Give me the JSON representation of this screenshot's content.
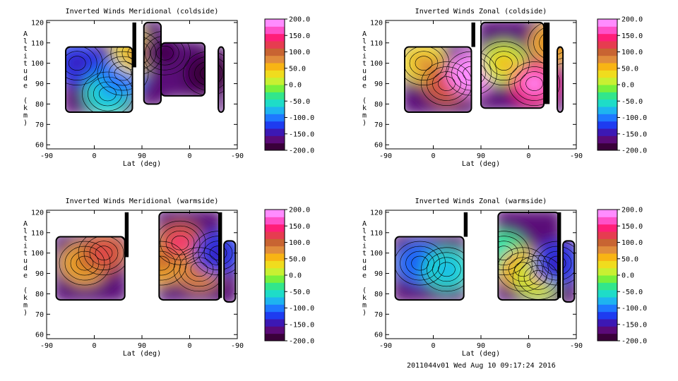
{
  "footer": "2011044v01 Wed Aug 10 09:17:24 2016",
  "colorbar": {
    "labels": [
      "200.0",
      "150.0",
      "100.0",
      "50.0",
      "0.0",
      "-50.0",
      "-100.0",
      "-150.0",
      "-200.0"
    ],
    "values": [
      200,
      150,
      100,
      50,
      0,
      -50,
      -100,
      -150,
      -200
    ],
    "colors": [
      "#3a003a",
      "#5a0a78",
      "#3c18b4",
      "#1e3cf0",
      "#1e78ff",
      "#1eb4f0",
      "#1edcc8",
      "#32e68c",
      "#78f03c",
      "#c8f032",
      "#f0dc1e",
      "#f8b414",
      "#e08c3c",
      "#c86432",
      "#e63c50",
      "#ff1e78",
      "#ff50c8",
      "#ff8cff"
    ]
  },
  "chart_data": [
    {
      "type": "heatmap",
      "title": "Inverted Winds Meridional (coldside)",
      "xlabel": "Lat (deg)",
      "ylabel": "Altitude (km)",
      "xticklabels": [
        "-90",
        "0",
        "90",
        "0",
        "-90"
      ],
      "yticks": [
        60,
        70,
        80,
        90,
        100,
        110,
        120
      ],
      "ylim": [
        58,
        121
      ],
      "zlim": [
        -200,
        200
      ],
      "blobs": [
        {
          "x": 0.16,
          "y": 100,
          "value": -120
        },
        {
          "x": 0.32,
          "y": 85,
          "value": -60
        },
        {
          "x": 0.4,
          "y": 95,
          "value": -90
        },
        {
          "x": 0.47,
          "y": 105,
          "value": 40
        },
        {
          "x": 0.62,
          "y": 105,
          "value": -170
        },
        {
          "x": 0.85,
          "y": 95,
          "value": -180
        }
      ]
    },
    {
      "type": "heatmap",
      "title": "Inverted Winds Zonal (coldside)",
      "xlabel": "Lat (deg)",
      "ylabel": "Altitude (km)",
      "xticklabels": [
        "-90",
        "0",
        "90",
        "0",
        "-90"
      ],
      "yticks": [
        60,
        70,
        80,
        90,
        100,
        110,
        120
      ],
      "ylim": [
        58,
        121
      ],
      "zlim": [
        -200,
        200
      ],
      "blobs": [
        {
          "x": 0.2,
          "y": 100,
          "value": 40
        },
        {
          "x": 0.32,
          "y": 90,
          "value": 100
        },
        {
          "x": 0.45,
          "y": 95,
          "value": 200
        },
        {
          "x": 0.62,
          "y": 100,
          "value": 20
        },
        {
          "x": 0.78,
          "y": 90,
          "value": 150
        },
        {
          "x": 0.88,
          "y": 110,
          "value": 60
        }
      ]
    },
    {
      "type": "heatmap",
      "title": "Inverted Winds Meridional (warmside)",
      "xlabel": "Lat (deg)",
      "ylabel": "Altitude (km)",
      "xticklabels": [
        "-90",
        "0",
        "90",
        "0",
        "-90"
      ],
      "yticks": [
        60,
        70,
        80,
        90,
        100,
        110,
        120
      ],
      "ylim": [
        58,
        121
      ],
      "zlim": [
        -200,
        200
      ],
      "blobs": [
        {
          "x": 0.2,
          "y": 95,
          "value": 60
        },
        {
          "x": 0.3,
          "y": 100,
          "value": 90
        },
        {
          "x": 0.6,
          "y": 95,
          "value": 60
        },
        {
          "x": 0.7,
          "y": 105,
          "value": 110
        },
        {
          "x": 0.8,
          "y": 92,
          "value": 80
        },
        {
          "x": 0.9,
          "y": 100,
          "value": -120
        }
      ]
    },
    {
      "type": "heatmap",
      "title": "Inverted Winds Zonal (warmside)",
      "xlabel": "Lat (deg)",
      "ylabel": "Altitude (km)",
      "xticklabels": [
        "-90",
        "0",
        "90",
        "0",
        "-90"
      ],
      "yticks": [
        60,
        70,
        80,
        90,
        100,
        110,
        120
      ],
      "ylim": [
        58,
        121
      ],
      "zlim": [
        -200,
        200
      ],
      "blobs": [
        {
          "x": 0.18,
          "y": 95,
          "value": -100
        },
        {
          "x": 0.32,
          "y": 92,
          "value": -60
        },
        {
          "x": 0.62,
          "y": 100,
          "value": -40
        },
        {
          "x": 0.72,
          "y": 92,
          "value": 60
        },
        {
          "x": 0.8,
          "y": 88,
          "value": 20
        },
        {
          "x": 0.9,
          "y": 95,
          "value": -130
        }
      ]
    }
  ]
}
